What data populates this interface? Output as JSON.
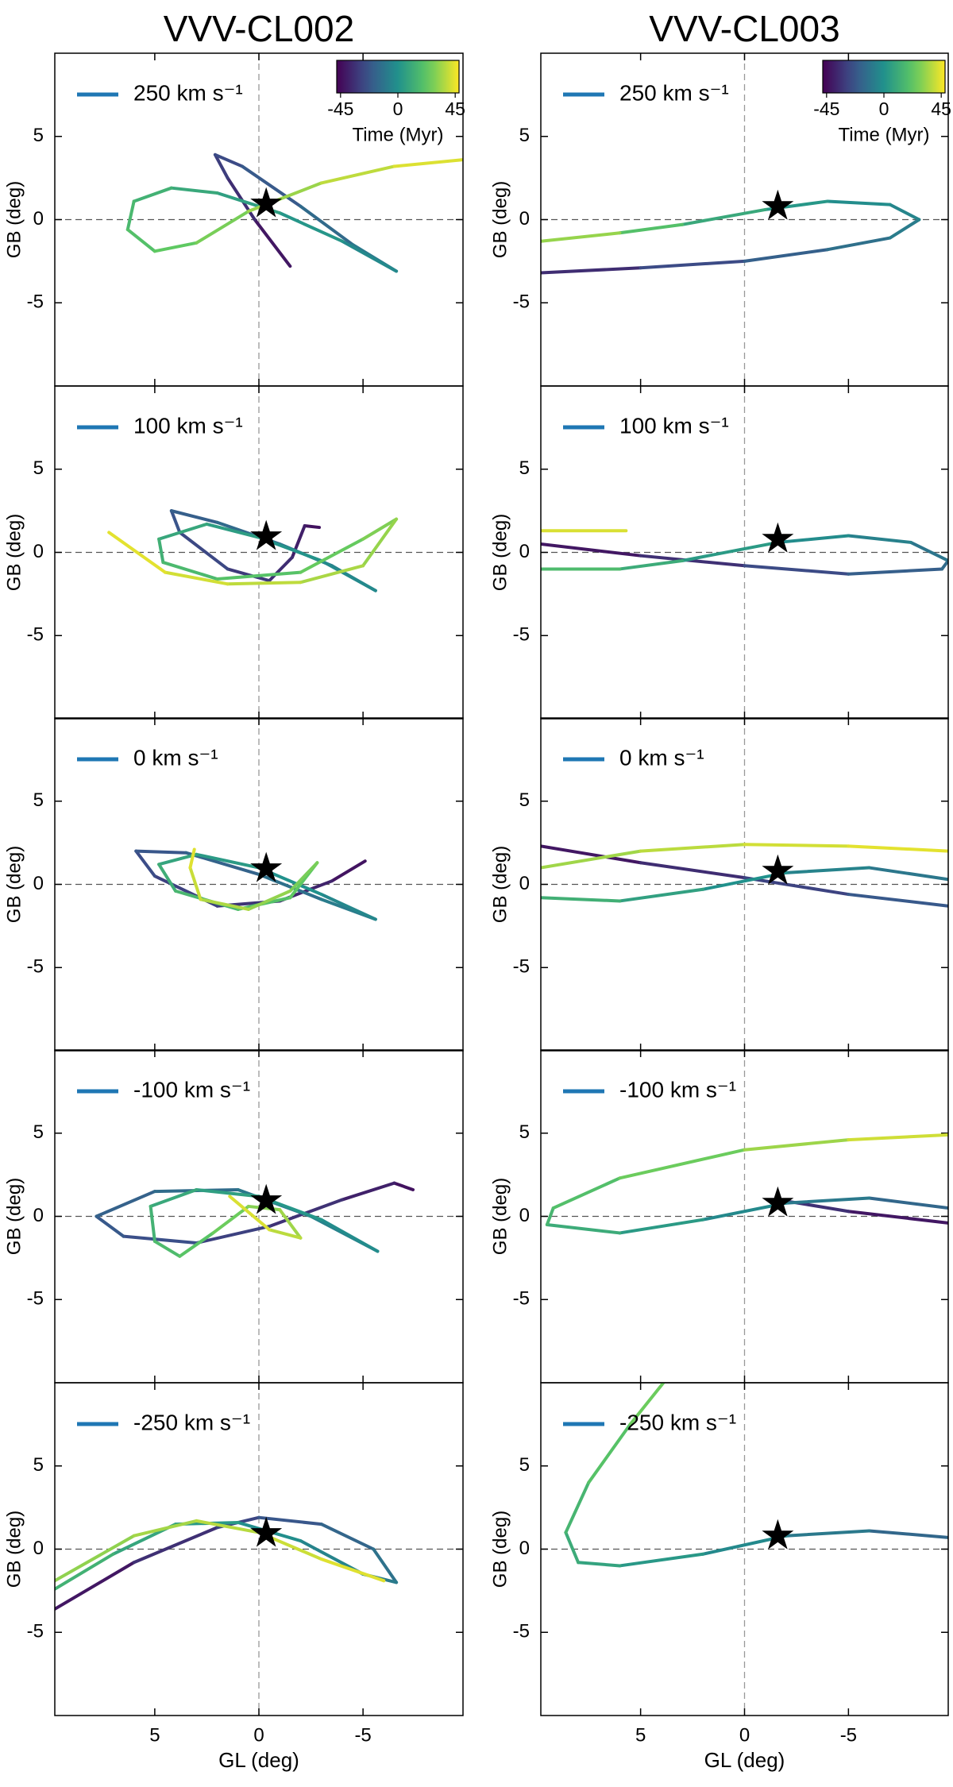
{
  "chart_data": [
    {
      "type": "line",
      "title": "VVV-CL002",
      "ylabel": "GB (deg)",
      "xlim": [
        9.8,
        -9.8
      ],
      "ylim": [
        -10,
        10
      ],
      "xticks": [
        5,
        0,
        -5
      ],
      "yticks": [
        -5,
        0,
        5
      ],
      "hlines": [
        0
      ],
      "vlines": [
        0
      ],
      "colormap": "viridis",
      "colorbar": {
        "label": "Time (Myr)",
        "lim": [
          -48,
          48
        ],
        "ticks": [
          -45,
          0,
          45
        ]
      },
      "star": {
        "x": -0.35,
        "y": 0.95
      },
      "series": [
        {
          "name": "250 km s⁻¹",
          "color": "#1f77b4",
          "x": [
            -1.5,
            0.2,
            1.5,
            2.1,
            0.8,
            -2,
            -4.5,
            -6.6,
            -4,
            -1,
            2,
            4.2,
            6,
            6.3,
            5,
            3,
            0.5,
            -3,
            -6.5,
            -9.8
          ],
          "y": [
            -2.8,
            0,
            2.5,
            3.9,
            3.2,
            0.8,
            -1.5,
            -3.1,
            -1.3,
            0.4,
            1.6,
            1.9,
            1.1,
            -0.6,
            -1.9,
            -1.4,
            0.5,
            2.2,
            3.2,
            3.6
          ],
          "time": [
            -45,
            -38,
            -32,
            -28,
            -24,
            -18,
            -12,
            -6,
            0,
            4,
            8,
            12,
            15,
            18,
            22,
            26,
            30,
            36,
            41,
            45
          ]
        }
      ]
    },
    {
      "type": "line",
      "title": "VVV-CL003",
      "ylabel": "GB (deg)",
      "xlim": [
        9.8,
        -9.8
      ],
      "ylim": [
        -10,
        10
      ],
      "xticks": [
        5,
        0,
        -5
      ],
      "yticks": [
        -5,
        0,
        5
      ],
      "hlines": [
        0
      ],
      "vlines": [
        0
      ],
      "colormap": "viridis",
      "colorbar": {
        "label": "Time (Myr)",
        "lim": [
          -48,
          48
        ],
        "ticks": [
          -45,
          0,
          45
        ]
      },
      "star": {
        "x": -1.6,
        "y": 0.8
      },
      "series": [
        {
          "name": "250 km s⁻¹",
          "color": "#1f77b4",
          "x": [
            9.8,
            5,
            0,
            -4,
            -7,
            -8.4,
            -7,
            -4,
            -1,
            3,
            6,
            9.8
          ],
          "y": [
            -3.2,
            -2.9,
            -2.5,
            -1.8,
            -1.1,
            0,
            0.9,
            1.1,
            0.6,
            -0.3,
            -0.8,
            -1.3
          ],
          "time": [
            -40,
            -30,
            -22,
            -15,
            -10,
            -6,
            -3,
            0,
            5,
            15,
            25,
            40
          ]
        }
      ]
    },
    {
      "type": "line",
      "ylabel": "GB (deg)",
      "xlim": [
        9.8,
        -9.8
      ],
      "ylim": [
        -10,
        10
      ],
      "xticks": [
        5,
        0,
        -5
      ],
      "yticks": [
        -5,
        0,
        5
      ],
      "hlines": [
        0
      ],
      "vlines": [
        0
      ],
      "colormap": "viridis",
      "star": {
        "x": -0.35,
        "y": 0.95
      },
      "series": [
        {
          "name": "100 km s⁻¹",
          "color": "#1f77b4",
          "x": [
            -2.9,
            -2.2,
            -1.6,
            -0.5,
            1.5,
            3.8,
            4.2,
            2,
            -1,
            -3.5,
            -5.6,
            -3,
            0,
            2.5,
            4.8,
            4.6,
            2,
            -2,
            -5,
            -6.6,
            -5,
            -2,
            1.5,
            4.5,
            7.2
          ],
          "y": [
            1.5,
            1.6,
            -0.3,
            -1.7,
            -1,
            1.2,
            2.5,
            1.8,
            0.5,
            -0.8,
            -2.3,
            -0.5,
            0.9,
            1.7,
            0.8,
            -0.6,
            -1.6,
            -1.2,
            0.8,
            2.0,
            -0.8,
            -1.8,
            -1.9,
            -1.2,
            1.2
          ],
          "time": [
            -45,
            -41,
            -37,
            -33,
            -29,
            -25,
            -21,
            -17,
            -13,
            -9,
            -5,
            -1,
            3,
            7,
            11,
            15,
            19,
            23,
            27,
            31,
            34,
            37,
            40,
            43,
            45
          ]
        }
      ]
    },
    {
      "type": "line",
      "ylabel": "GB (deg)",
      "xlim": [
        9.8,
        -9.8
      ],
      "ylim": [
        -10,
        10
      ],
      "xticks": [
        5,
        0,
        -5
      ],
      "yticks": [
        -5,
        0,
        5
      ],
      "hlines": [
        0
      ],
      "vlines": [
        0
      ],
      "colormap": "viridis",
      "star": {
        "x": -1.6,
        "y": 0.8
      },
      "series": [
        {
          "name": "100 km s⁻¹",
          "color": "#1f77b4",
          "x": [
            9.8,
            5,
            0,
            -5,
            -9.5,
            -9.8,
            -8,
            -5,
            -1.6,
            3,
            6,
            9.8,
            null,
            9.8,
            5.7
          ],
          "y": [
            0.5,
            -0.2,
            -0.8,
            -1.3,
            -1.0,
            -0.5,
            0.6,
            1,
            0.6,
            -0.5,
            -1,
            -1.0,
            null,
            1.3,
            1.3
          ],
          "time": [
            -45,
            -38,
            -30,
            -22,
            -16,
            -13,
            -8,
            -4,
            0,
            8,
            14,
            22,
            null,
            40,
            45
          ]
        }
      ]
    },
    {
      "type": "line",
      "ylabel": "GB (deg)",
      "xlim": [
        9.8,
        -9.8
      ],
      "ylim": [
        -10,
        10
      ],
      "xticks": [
        5,
        0,
        -5
      ],
      "yticks": [
        -5,
        0,
        5
      ],
      "hlines": [
        0
      ],
      "vlines": [
        0
      ],
      "colormap": "viridis",
      "star": {
        "x": -0.35,
        "y": 0.95
      },
      "series": [
        {
          "name": "0 km s⁻¹",
          "color": "#1f77b4",
          "x": [
            -5.1,
            -3.5,
            -1,
            2,
            5,
            5.9,
            3.5,
            0,
            -3,
            -5.6,
            -3,
            0,
            3,
            4.8,
            4,
            1,
            -1.5,
            -2.8,
            -1.5,
            0.5,
            2.8,
            3.3,
            3.1
          ],
          "y": [
            1.4,
            0.2,
            -1,
            -1.3,
            0.5,
            2.0,
            1.9,
            0.6,
            -0.9,
            -2.1,
            -0.6,
            1,
            1.8,
            1.2,
            -0.4,
            -1.5,
            -0.8,
            1.3,
            -0.4,
            -1.5,
            -0.9,
            1,
            2.1
          ],
          "time": [
            -45,
            -40,
            -35,
            -31,
            -27,
            -24,
            -20,
            -15,
            -10,
            -6,
            -2,
            2,
            6,
            10,
            14,
            18,
            22,
            26,
            30,
            34,
            38,
            42,
            45
          ]
        }
      ]
    },
    {
      "type": "line",
      "ylabel": "GB (deg)",
      "xlim": [
        9.8,
        -9.8
      ],
      "ylim": [
        -10,
        10
      ],
      "xticks": [
        5,
        0,
        -5
      ],
      "yticks": [
        -5,
        0,
        5
      ],
      "hlines": [
        0
      ],
      "vlines": [
        0
      ],
      "colormap": "viridis",
      "star": {
        "x": -1.6,
        "y": 0.8
      },
      "series": [
        {
          "name": "0 km s⁻¹",
          "color": "#1f77b4",
          "x": [
            9.8,
            5,
            0,
            -5,
            -9.8,
            null,
            -9.8,
            -6,
            -2,
            2,
            6,
            9.8,
            null,
            9.8,
            5,
            0,
            -5,
            -9.8
          ],
          "y": [
            2.3,
            1.3,
            0.4,
            -0.6,
            -1.3,
            null,
            0.3,
            1.0,
            0.7,
            -0.3,
            -1.0,
            -0.8,
            null,
            1.0,
            2.0,
            2.4,
            2.3,
            2.0
          ],
          "time": [
            -45,
            -38,
            -32,
            -25,
            -18,
            null,
            -12,
            -8,
            -3,
            3,
            10,
            16,
            null,
            32,
            36,
            40,
            43,
            45
          ]
        }
      ]
    },
    {
      "type": "line",
      "ylabel": "GB (deg)",
      "xlim": [
        9.8,
        -9.8
      ],
      "ylim": [
        -10,
        10
      ],
      "xticks": [
        5,
        0,
        -5
      ],
      "yticks": [
        -5,
        0,
        5
      ],
      "hlines": [
        0
      ],
      "vlines": [
        0
      ],
      "colormap": "viridis",
      "star": {
        "x": -0.35,
        "y": 0.95
      },
      "series": [
        {
          "name": "-100 km s⁻¹",
          "color": "#1f77b4",
          "x": [
            -7.4,
            -6.5,
            -4,
            -0.5,
            3,
            6.5,
            7.8,
            5,
            1,
            -2.5,
            -5.7,
            -3,
            0,
            3,
            5.2,
            5,
            3.8,
            2.2,
            0.5,
            -1,
            -2,
            -0.5,
            1.4
          ],
          "y": [
            1.6,
            2.0,
            1,
            -0.6,
            -1.6,
            -1.2,
            0,
            1.5,
            1.6,
            0,
            -2.1,
            -0.2,
            1.2,
            1.6,
            0.6,
            -1.5,
            -2.4,
            -1,
            0.6,
            0.4,
            -1.3,
            -0.8,
            1.2
          ],
          "time": [
            -45,
            -41,
            -36,
            -31,
            -27,
            -23,
            -20,
            -16,
            -12,
            -8,
            -4,
            0,
            4,
            8,
            12,
            16,
            20,
            24,
            28,
            32,
            36,
            40,
            45
          ]
        }
      ]
    },
    {
      "type": "line",
      "ylabel": "GB (deg)",
      "xlim": [
        9.8,
        -9.8
      ],
      "ylim": [
        -10,
        10
      ],
      "xticks": [
        5,
        0,
        -5
      ],
      "yticks": [
        -5,
        0,
        5
      ],
      "hlines": [
        0
      ],
      "vlines": [
        0
      ],
      "colormap": "viridis",
      "star": {
        "x": -1.6,
        "y": 0.8
      },
      "series": [
        {
          "name": "-100 km s⁻¹",
          "color": "#1f77b4",
          "x": [
            -9.8,
            -5,
            -1.6,
            null,
            -9.8,
            -6,
            -2,
            2,
            6,
            9.5,
            9.2,
            6,
            0,
            -5,
            -9.8
          ],
          "y": [
            -0.4,
            0.3,
            1.0,
            null,
            0.5,
            1.1,
            0.8,
            -0.2,
            -1.0,
            -0.5,
            0.5,
            2.3,
            4.0,
            4.6,
            4.9
          ],
          "time": [
            -45,
            -38,
            -30,
            null,
            -20,
            -12,
            -6,
            0,
            8,
            14,
            17,
            22,
            30,
            37,
            45
          ]
        }
      ]
    },
    {
      "type": "line",
      "ylabel": "GB (deg)",
      "xlabel": "GL (deg)",
      "xlim": [
        9.8,
        -9.8
      ],
      "ylim": [
        -10,
        10
      ],
      "xticks": [
        5,
        0,
        -5
      ],
      "yticks": [
        -5,
        0,
        5
      ],
      "hlines": [
        0
      ],
      "vlines": [
        0
      ],
      "colormap": "viridis",
      "star": {
        "x": -0.35,
        "y": 0.95
      },
      "series": [
        {
          "name": "-250 km s⁻¹",
          "color": "#1f77b4",
          "x": [
            9.8,
            6,
            2,
            0,
            -3,
            -5.5,
            -6.6,
            -5,
            -2,
            1,
            4,
            7,
            9.8,
            null,
            9.8,
            6,
            3,
            0,
            -3,
            -6
          ],
          "y": [
            -3.6,
            -0.8,
            1.3,
            1.9,
            1.5,
            0,
            -2,
            -1.5,
            0.5,
            1.6,
            1.5,
            -0.3,
            -2.4,
            null,
            -1.9,
            0.8,
            1.7,
            1.0,
            -0.6,
            -1.9
          ],
          "time": [
            -45,
            -38,
            -30,
            -25,
            -19,
            -14,
            -10,
            -7,
            -3,
            1,
            6,
            11,
            16,
            null,
            30,
            33,
            36,
            39,
            42,
            45
          ]
        }
      ]
    },
    {
      "type": "line",
      "ylabel": "GB (deg)",
      "xlabel": "GL (deg)",
      "xlim": [
        9.8,
        -9.8
      ],
      "ylim": [
        -10,
        10
      ],
      "xticks": [
        5,
        0,
        -5
      ],
      "yticks": [
        -5,
        0,
        5
      ],
      "hlines": [
        0
      ],
      "vlines": [
        0
      ],
      "colormap": "viridis",
      "star": {
        "x": -1.6,
        "y": 0.8
      },
      "series": [
        {
          "name": "-250 km s⁻¹",
          "color": "#1f77b4",
          "x": [
            -9.8,
            -6,
            -2,
            2,
            6,
            8,
            8.6,
            7.5,
            5.5,
            3.9
          ],
          "y": [
            0.7,
            1.1,
            0.8,
            -0.3,
            -1.0,
            -0.8,
            1,
            4,
            7.5,
            10
          ],
          "time": [
            -20,
            -12,
            -6,
            0,
            6,
            9,
            13,
            18,
            24,
            28
          ]
        }
      ]
    }
  ]
}
